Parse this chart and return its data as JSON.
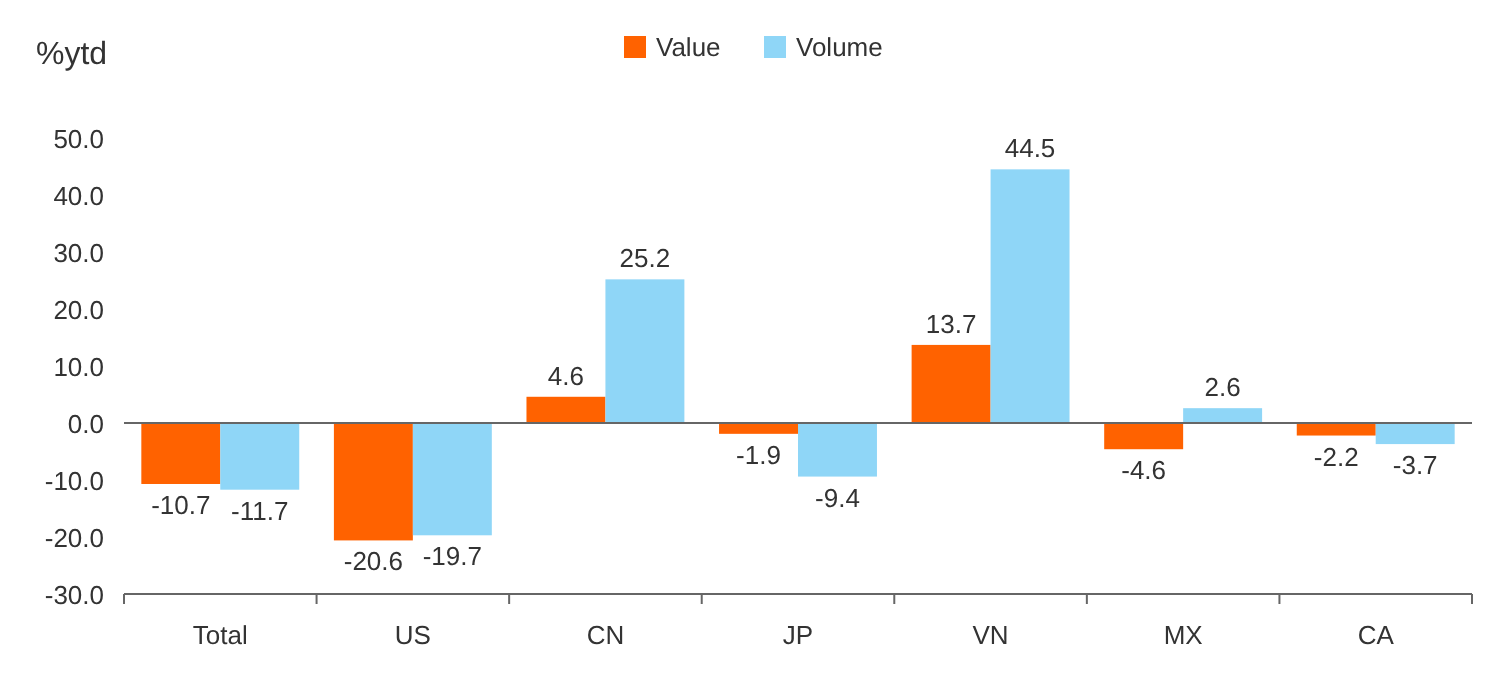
{
  "chart_data": {
    "type": "bar",
    "ylabel": "%ytd",
    "categories": [
      "Total",
      "US",
      "CN",
      "JP",
      "VN",
      "MX",
      "CA"
    ],
    "series": [
      {
        "name": "Value",
        "color": "#ff6200",
        "values": [
          -10.7,
          -20.6,
          4.6,
          -1.9,
          13.7,
          -4.6,
          -2.2
        ]
      },
      {
        "name": "Volume",
        "color": "#8fd6f7",
        "values": [
          -11.7,
          -19.7,
          25.2,
          -9.4,
          44.5,
          2.6,
          -3.7
        ]
      }
    ],
    "ylim": [
      -30,
      50
    ],
    "yticks": [
      {
        "value": -30,
        "label": "-30.0"
      },
      {
        "value": -20,
        "label": "-20.0"
      },
      {
        "value": -10,
        "label": "-10.0"
      },
      {
        "value": 0,
        "label": "0.0"
      },
      {
        "value": 10,
        "label": "10.0"
      },
      {
        "value": 20,
        "label": "20.0"
      },
      {
        "value": 30,
        "label": "30.0"
      },
      {
        "value": 40,
        "label": "40.0"
      },
      {
        "value": 50,
        "label": "50.0"
      }
    ],
    "data_labels": true,
    "legend": "top"
  }
}
